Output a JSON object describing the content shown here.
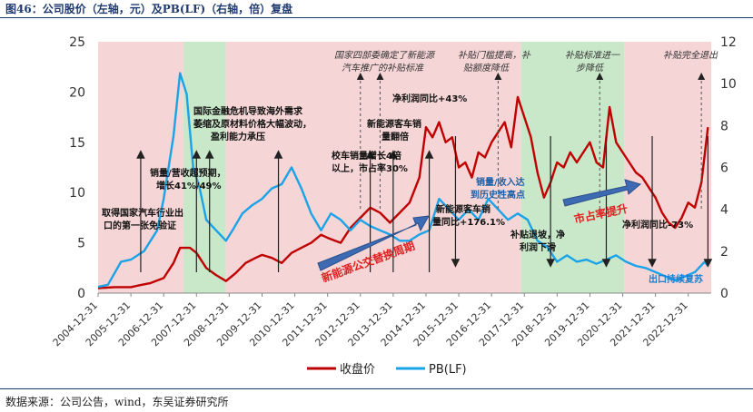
{
  "figure": {
    "title": "图46：公司股价（左轴，元）及PB(LF)（右轴，倍）复盘",
    "source": "数据来源：公司公告，wind，东吴证券研究所"
  },
  "colors": {
    "close": "#c00000",
    "pb": "#1aa3e8",
    "bg_pink": "#f5d5d5",
    "bg_green": "#c9e8c9",
    "arrow": "#3d6bb3",
    "arrow_text": "#e02020"
  },
  "chart_data": {
    "type": "line",
    "title": "",
    "yleft": {
      "ylim": [
        0,
        25
      ],
      "ticks": [
        0,
        5,
        10,
        15,
        20,
        25
      ]
    },
    "yright": {
      "ylim": [
        0,
        12
      ],
      "ticks": [
        0,
        2,
        4,
        6,
        8,
        10,
        12
      ]
    },
    "x_tick_labels": [
      "2004-12-31",
      "2005-12-31",
      "2006-12-31",
      "2007-12-31",
      "2008-12-31",
      "2009-12-31",
      "2010-12-31",
      "2011-12-31",
      "2012-12-31",
      "2013-12-31",
      "2014-12-31",
      "2015-12-31",
      "2016-12-31",
      "2017-12-31",
      "2018-12-31",
      "2019-12-31",
      "2020-12-31",
      "2021-12-31",
      "2022-12-31"
    ],
    "xlim": [
      2005.0,
      2023.7
    ],
    "background_bands": [
      {
        "from": 2005.0,
        "to": 2007.6,
        "color": "pink"
      },
      {
        "from": 2007.6,
        "to": 2008.9,
        "color": "green"
      },
      {
        "from": 2008.9,
        "to": 2017.9,
        "color": "pink"
      },
      {
        "from": 2017.9,
        "to": 2021.05,
        "color": "green"
      },
      {
        "from": 2021.05,
        "to": 2023.7,
        "color": "pink"
      }
    ],
    "series": [
      {
        "name": "收盘价",
        "axis": "left",
        "x": [
          2005.0,
          2005.5,
          2006.0,
          2006.3,
          2006.6,
          2007.0,
          2007.3,
          2007.5,
          2007.8,
          2008.0,
          2008.3,
          2008.6,
          2008.9,
          2009.2,
          2009.5,
          2009.8,
          2010.0,
          2010.3,
          2010.6,
          2010.9,
          2011.2,
          2011.5,
          2011.8,
          2012.0,
          2012.4,
          2012.7,
          2013.0,
          2013.3,
          2013.6,
          2013.9,
          2014.2,
          2014.5,
          2014.8,
          2015.0,
          2015.2,
          2015.4,
          2015.6,
          2015.8,
          2016.0,
          2016.2,
          2016.4,
          2016.6,
          2016.8,
          2017.0,
          2017.2,
          2017.4,
          2017.6,
          2017.8,
          2018.0,
          2018.2,
          2018.4,
          2018.6,
          2018.8,
          2019.0,
          2019.2,
          2019.4,
          2019.6,
          2019.8,
          2020.0,
          2020.2,
          2020.4,
          2020.6,
          2020.8,
          2021.0,
          2021.2,
          2021.4,
          2021.6,
          2021.8,
          2022.0,
          2022.2,
          2022.4,
          2022.6,
          2022.8,
          2023.0,
          2023.2,
          2023.4,
          2023.6
        ],
        "y": [
          0.5,
          0.6,
          0.6,
          0.8,
          1.0,
          1.5,
          3.0,
          4.5,
          4.5,
          4.0,
          2.5,
          1.8,
          1.2,
          2.0,
          3.0,
          3.5,
          3.8,
          3.5,
          3.0,
          4.0,
          4.5,
          5.0,
          5.8,
          5.5,
          5.0,
          6.5,
          7.5,
          8.5,
          8.0,
          7.0,
          8.0,
          9.0,
          11.5,
          16.5,
          15.5,
          17.0,
          15.0,
          15.5,
          12.5,
          13.0,
          11.5,
          14.0,
          13.5,
          15.0,
          16.0,
          17.0,
          14.5,
          19.5,
          17.5,
          15.5,
          12.0,
          9.5,
          11.0,
          13.0,
          12.5,
          14.0,
          13.0,
          14.0,
          15.0,
          13.0,
          12.5,
          18.5,
          15.0,
          14.0,
          13.0,
          12.0,
          11.5,
          10.5,
          9.5,
          8.0,
          7.0,
          6.5,
          7.5,
          9.0,
          8.5,
          11.0,
          16.5
        ]
      },
      {
        "name": "PB(LF)",
        "axis": "right",
        "x": [
          2005.0,
          2005.3,
          2005.7,
          2006.0,
          2006.4,
          2006.8,
          2007.0,
          2007.3,
          2007.5,
          2007.7,
          2007.9,
          2008.1,
          2008.3,
          2008.6,
          2008.9,
          2009.1,
          2009.4,
          2009.7,
          2010.0,
          2010.3,
          2010.6,
          2010.9,
          2011.2,
          2011.5,
          2011.8,
          2012.1,
          2012.4,
          2012.7,
          2013.0,
          2013.3,
          2013.6,
          2013.9,
          2014.2,
          2014.5,
          2014.8,
          2015.1,
          2015.4,
          2015.7,
          2016.0,
          2016.3,
          2016.6,
          2016.9,
          2017.2,
          2017.5,
          2017.8,
          2018.1,
          2018.4,
          2018.7,
          2019.0,
          2019.3,
          2019.6,
          2019.9,
          2020.2,
          2020.5,
          2020.8,
          2021.1,
          2021.4,
          2021.7,
          2022.0,
          2022.3,
          2022.6,
          2022.9,
          2023.2,
          2023.5,
          2023.6
        ],
        "y": [
          0.3,
          0.4,
          1.5,
          1.6,
          2.0,
          3.0,
          4.5,
          7.5,
          10.5,
          9.5,
          6.0,
          5.0,
          3.5,
          3.0,
          2.5,
          3.0,
          3.8,
          4.2,
          4.5,
          5.0,
          5.2,
          6.0,
          5.0,
          3.8,
          3.0,
          3.8,
          3.5,
          3.0,
          3.5,
          3.2,
          3.0,
          2.8,
          2.5,
          2.5,
          2.8,
          3.0,
          4.5,
          4.0,
          3.5,
          4.0,
          3.5,
          4.5,
          4.0,
          3.5,
          3.8,
          3.5,
          2.5,
          2.2,
          1.5,
          1.8,
          1.5,
          1.6,
          1.4,
          1.6,
          1.8,
          1.5,
          1.3,
          1.2,
          1.0,
          0.8,
          0.6,
          0.8,
          1.0,
          1.5,
          1.3
        ]
      }
    ],
    "arrows_up": [
      2006.3,
      2008.0,
      2008.4,
      2010.5,
      2013.3,
      2014.0,
      2015.1
    ],
    "arrows_down": [
      2015.9,
      2018.8,
      2020.5,
      2021.9,
      2023.6
    ],
    "arrows_dashed": [
      2013.0,
      2013.6,
      2017.2,
      2020.3,
      2023.4
    ],
    "legend": [
      "收盘价",
      "PB(LF)"
    ]
  },
  "annotations": {
    "a1": "取得国家汽车行业出",
    "a1b": "口的第一张免验证",
    "a2": "销量/营收超预期，",
    "a2b": "增长41%/49%",
    "a3": "国际金融危机导致海外需求",
    "a3b": "萎缩及原材料价格大幅波动，",
    "a3c": "盈利能力承压",
    "a4": "校车销量增长4倍",
    "a4b": "以上，市占率30%",
    "a5": "新能源客车销",
    "a5b": "量翻倍",
    "a6": "净利润同比+43%",
    "a7": "国家四部委确定了新能源",
    "a7b": "汽车推广的补贴标准",
    "a8": "补贴门槛提高，补",
    "a8b": "贴额度降低",
    "a9": "补贴标准进一",
    "a9b": "步降低",
    "a10": "补贴完全退出",
    "a11": "新能源客车销",
    "a11b": "量同比+176.1%",
    "a12": "销量/收入达",
    "a12b": "到历史性高点",
    "a13": "补贴退坡，净",
    "a13b": "利润下滑",
    "a14": "净利润同比-73%",
    "a15": "出口持续复苏",
    "arrow1": "新能源公交替换周期",
    "arrow2": "市占率提升"
  }
}
